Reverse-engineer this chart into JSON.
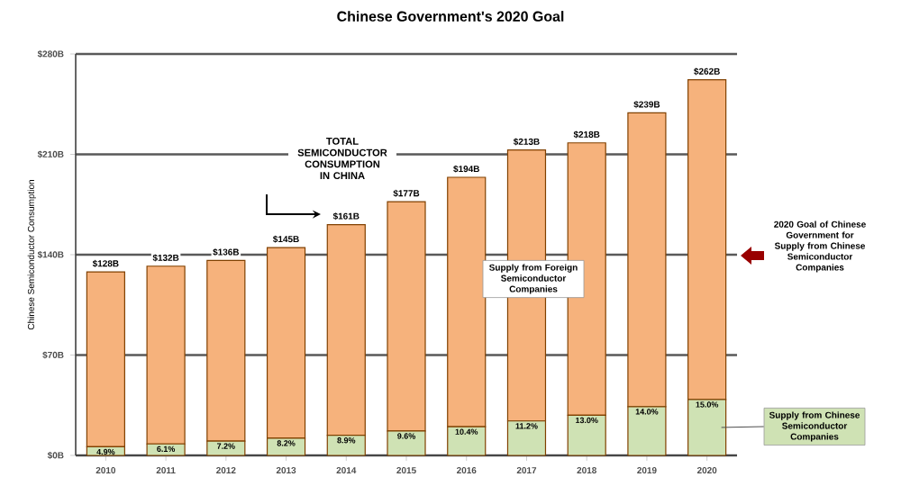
{
  "chart_data": {
    "type": "bar",
    "stacked": true,
    "title": "Chinese Government's 2020 Goal",
    "ylabel": "Chinese Semiconductor Consumption",
    "categories": [
      "2010",
      "2011",
      "2012",
      "2013",
      "2014",
      "2015",
      "2016",
      "2017",
      "2018",
      "2019",
      "2020"
    ],
    "series": [
      {
        "name": "Supply from Chinese Semiconductor Companies",
        "color": "#cfe2b4",
        "values": [
          6,
          8,
          10,
          12,
          14,
          17,
          20,
          24,
          28,
          34,
          39
        ]
      },
      {
        "name": "Supply from Foreign Semiconductor Companies",
        "color": "#f6b27c",
        "values": [
          122,
          124,
          126,
          133,
          147,
          160,
          174,
          189,
          190,
          205,
          223
        ]
      }
    ],
    "totals": [
      "$128B",
      "$132B",
      "$136B",
      "$145B",
      "$161B",
      "$177B",
      "$194B",
      "$213B",
      "$218B",
      "$239B",
      "$262B"
    ],
    "ylim": [
      0,
      280
    ],
    "yticks": [
      {
        "value": 0,
        "label": "$0B"
      },
      {
        "value": 70,
        "label": "$70B"
      },
      {
        "value": 140,
        "label": "$140B"
      },
      {
        "value": 210,
        "label": "$210B"
      },
      {
        "value": 280,
        "label": "$280B"
      }
    ],
    "grid": "y",
    "legend": false,
    "annotations": [
      "TOTAL SEMICONDUCTOR CONSUMPTION IN CHINA",
      "2020 Goal of Chinese Government for Supply from Chinese Semiconductor Companies",
      {
        "text": "4.9%",
        "x": "2010",
        "y": 6
      },
      {
        "text": "6.1%",
        "x": "2011",
        "y": 8
      },
      {
        "text": "7.2%",
        "x": "2012",
        "y": 10
      },
      {
        "text": "8.2%",
        "x": "2013",
        "y": 12
      },
      {
        "text": "8.9%",
        "x": "2014",
        "y": 14
      },
      {
        "text": "9.6%",
        "x": "2015",
        "y": 17
      },
      {
        "text": "10.4%",
        "x": "2016",
        "y": 20
      },
      {
        "text": "11.2%",
        "x": "2017",
        "y": 24
      },
      {
        "text": "13.0%",
        "x": "2018",
        "y": 28
      },
      {
        "text": "14.0%",
        "x": "2019",
        "y": 34
      },
      {
        "text": "15.0%",
        "x": "2020",
        "y": 39
      }
    ]
  }
}
